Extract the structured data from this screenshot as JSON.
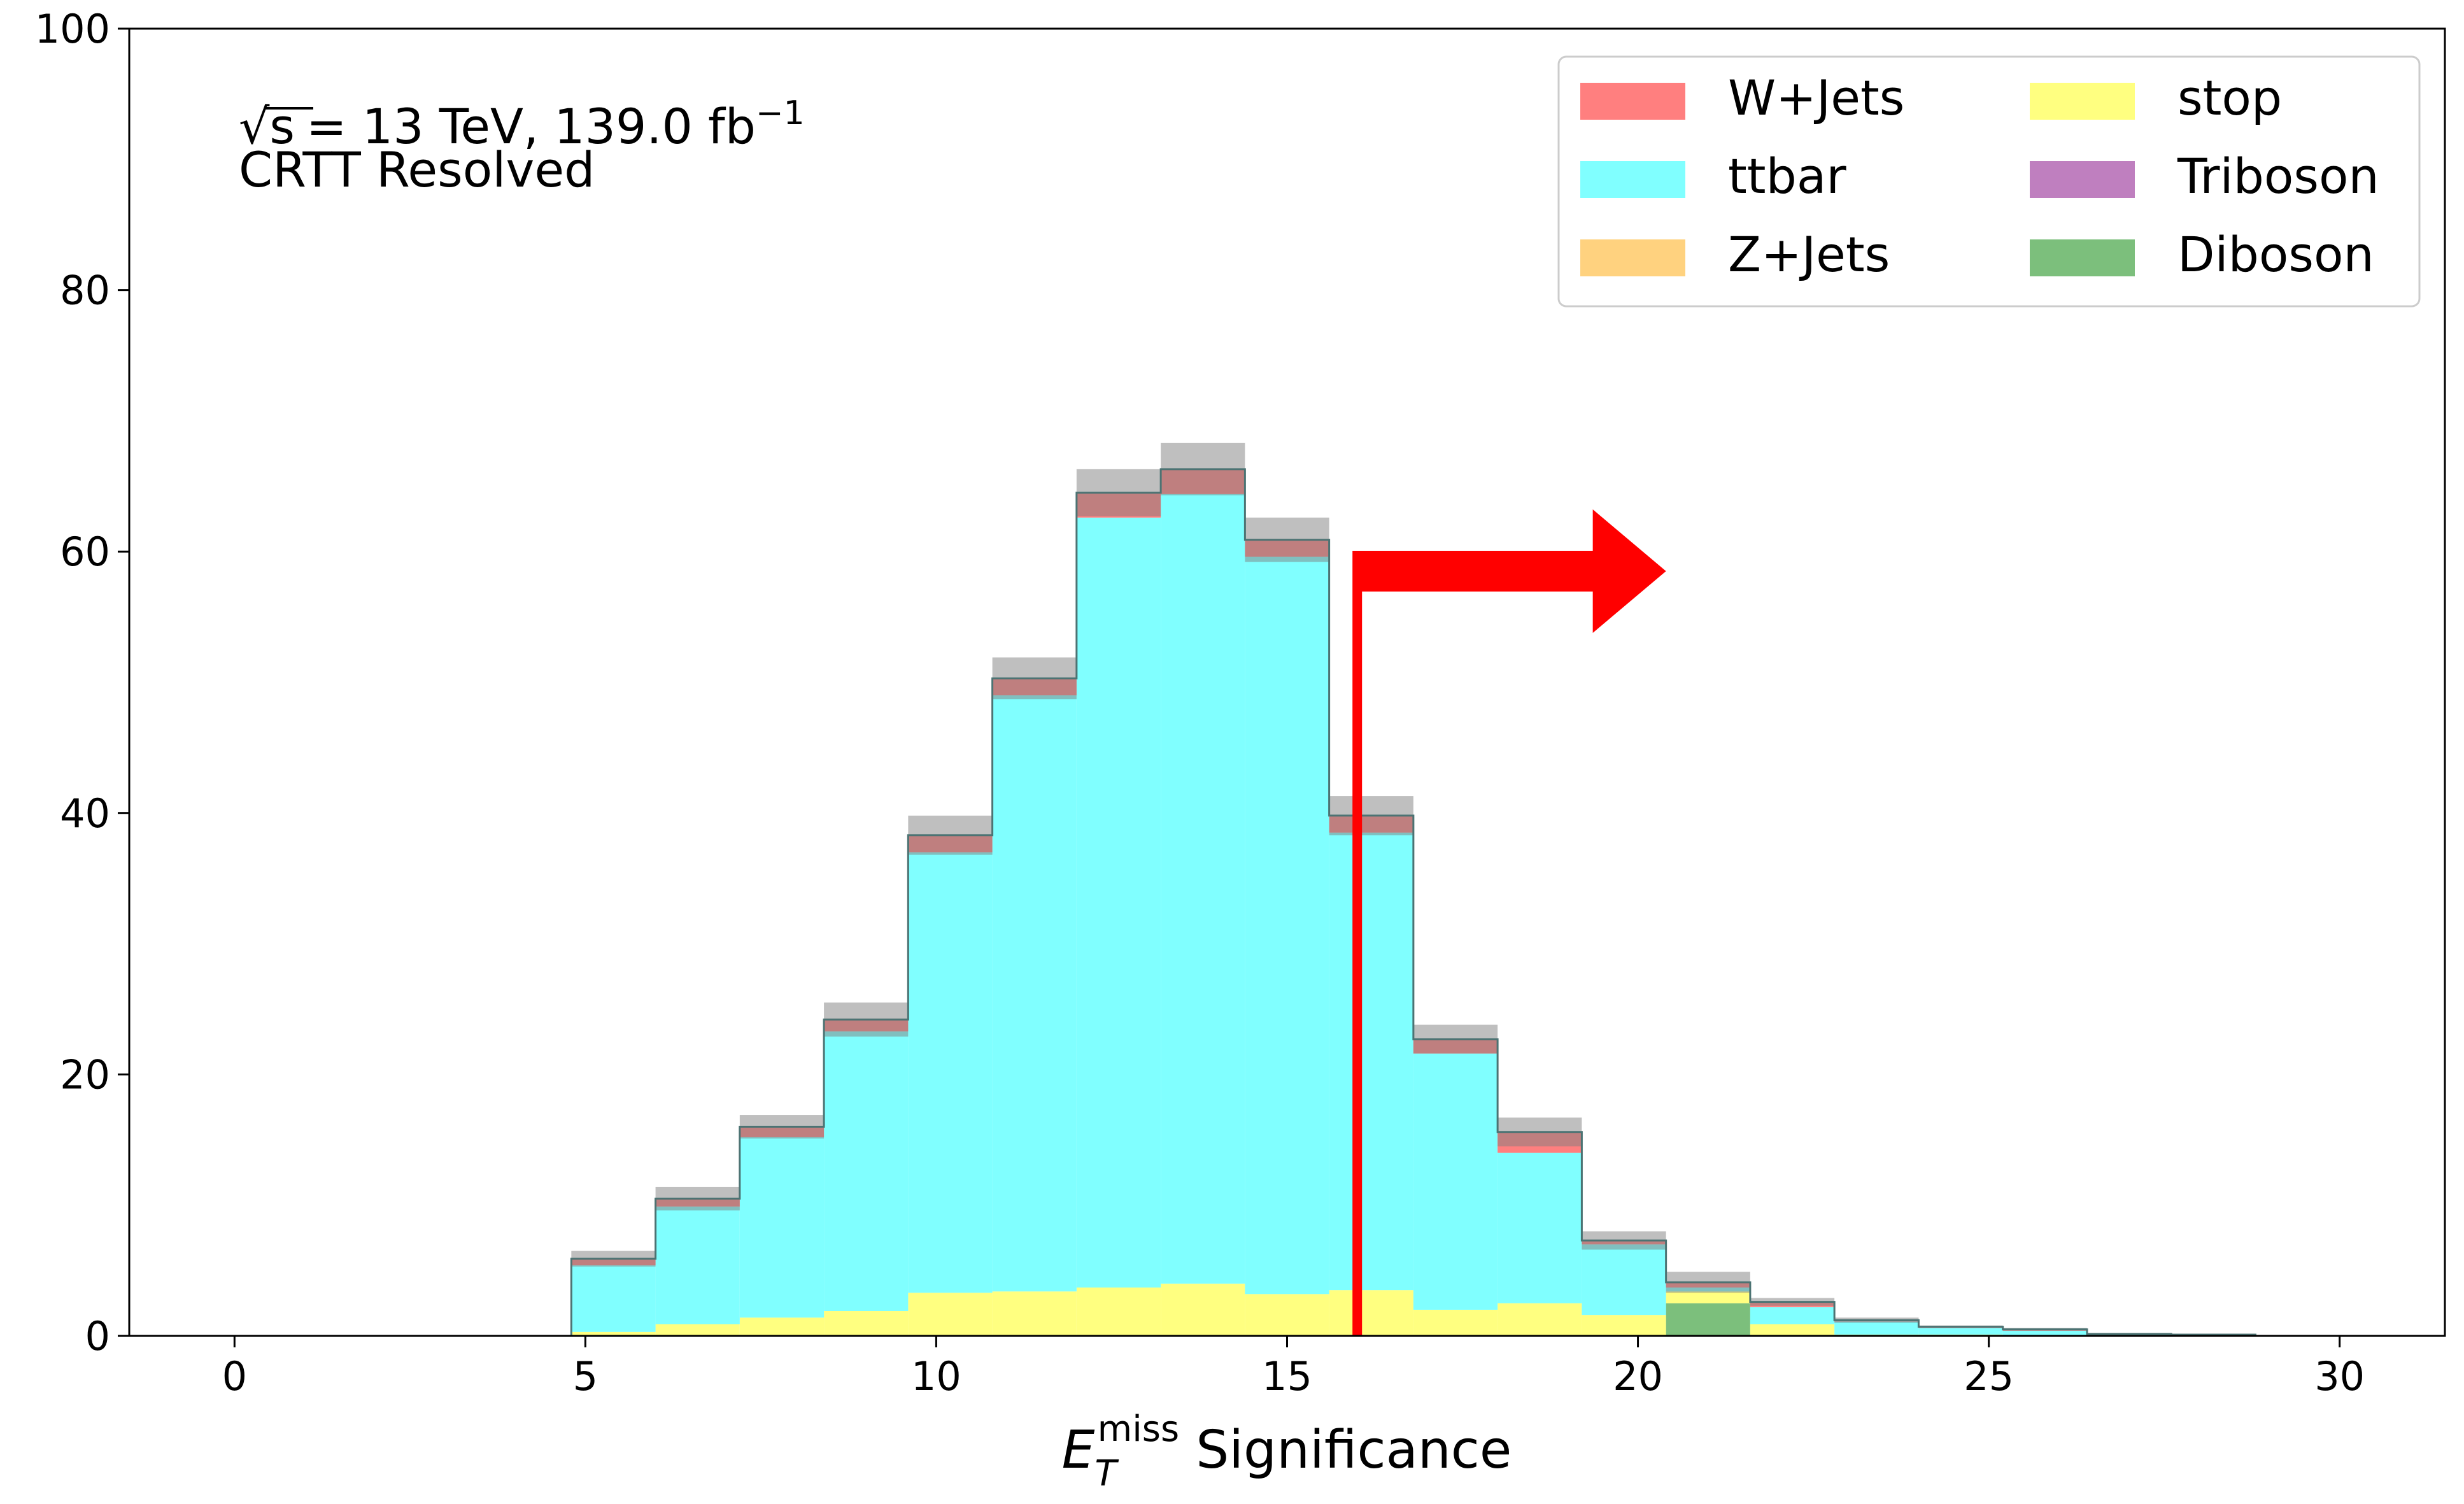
{
  "chart_data": {
    "type": "bar",
    "subtype": "stacked-step-histogram",
    "annotations": {
      "energy_label": "= 13 TeV, 139.0 fb",
      "energy_sqrt": "√s",
      "lumi_exponent": "−1",
      "region": "CRTT Resolved"
    },
    "xlabel": {
      "symbol": "E",
      "subscript": "T",
      "superscript": "miss",
      "text": " Significance"
    },
    "ylabel": "",
    "xlim": [
      -1.5,
      31.5
    ],
    "ylim": [
      0,
      100
    ],
    "xticks": [
      0,
      5,
      10,
      15,
      20,
      25,
      30
    ],
    "yticks": [
      0,
      20,
      40,
      60,
      80,
      100
    ],
    "bin_edges": [
      4.8,
      6.0,
      7.2,
      8.4,
      9.6,
      10.8,
      12.0,
      13.2,
      14.4,
      15.6,
      16.8,
      18.0,
      19.2,
      20.4,
      21.6,
      22.8,
      24.0,
      25.2,
      26.4,
      27.6,
      28.8
    ],
    "series": [
      {
        "name": "Diboson",
        "color": "#7cbf7c",
        "values": [
          0,
          0,
          0,
          0,
          0,
          0,
          0,
          0,
          0,
          0,
          0,
          0,
          0,
          2.5,
          0,
          0,
          0,
          0,
          0,
          0
        ]
      },
      {
        "name": "Triboson",
        "color": "#bf7fbf",
        "values": [
          0,
          0,
          0,
          0,
          0,
          0,
          0,
          0,
          0,
          0,
          0,
          0,
          0,
          0,
          0,
          0,
          0,
          0,
          0,
          0
        ]
      },
      {
        "name": "stop",
        "color": "#ffff80",
        "values": [
          0.3,
          0.9,
          1.4,
          1.9,
          3.3,
          3.4,
          3.7,
          4.0,
          3.2,
          3.5,
          2.0,
          2.5,
          1.6,
          0.9,
          0.9,
          0.1,
          0.1,
          0,
          0,
          0
        ]
      },
      {
        "name": "Z+Jets",
        "color": "#ffd27f",
        "values": [
          0,
          0,
          0,
          0,
          0,
          0,
          0,
          0,
          0,
          0,
          0,
          0,
          0,
          0,
          0,
          0,
          0,
          0,
          0,
          0
        ]
      },
      {
        "name": "ttbar",
        "color": "#80ffff",
        "values": [
          5.1,
          9.0,
          13.8,
          21.4,
          33.7,
          45.6,
          58.9,
          60.4,
          56.4,
          35.0,
          19.6,
          11.5,
          5.4,
          0.3,
          1.3,
          1.0,
          0.5,
          0.4,
          0.1,
          0.05
        ]
      },
      {
        "name": "W+Jets",
        "color": "#ff7f7f",
        "values": [
          0.5,
          0.6,
          0.8,
          0.9,
          1.3,
          1.3,
          1.9,
          1.9,
          1.3,
          1.3,
          1.1,
          1.6,
          0.3,
          0.4,
          0.4,
          0.1,
          0.1,
          0.1,
          0.05,
          0.05
        ]
      }
    ],
    "uncertainty": [
      0.6,
      0.9,
      0.9,
      1.3,
      1.5,
      1.6,
      1.8,
      2.0,
      1.7,
      1.5,
      1.1,
      1.1,
      0.7,
      0.8,
      0.3,
      0.2,
      0.1,
      0.1,
      0.05,
      0.05
    ],
    "cut": {
      "x": 16.0,
      "arrow_y": 58.5,
      "arrow_tip_x": 20.4,
      "line_color": "#ff0000"
    },
    "legend": {
      "location": "top-right",
      "entries": [
        {
          "name": "W+Jets",
          "color": "#ff7f7f"
        },
        {
          "name": "stop",
          "color": "#ffff80"
        },
        {
          "name": "ttbar",
          "color": "#80ffff"
        },
        {
          "name": "Triboson",
          "color": "#bf7fbf"
        },
        {
          "name": "Z+Jets",
          "color": "#ffd27f"
        },
        {
          "name": "Diboson",
          "color": "#7cbf7c"
        }
      ]
    },
    "grid": false
  }
}
